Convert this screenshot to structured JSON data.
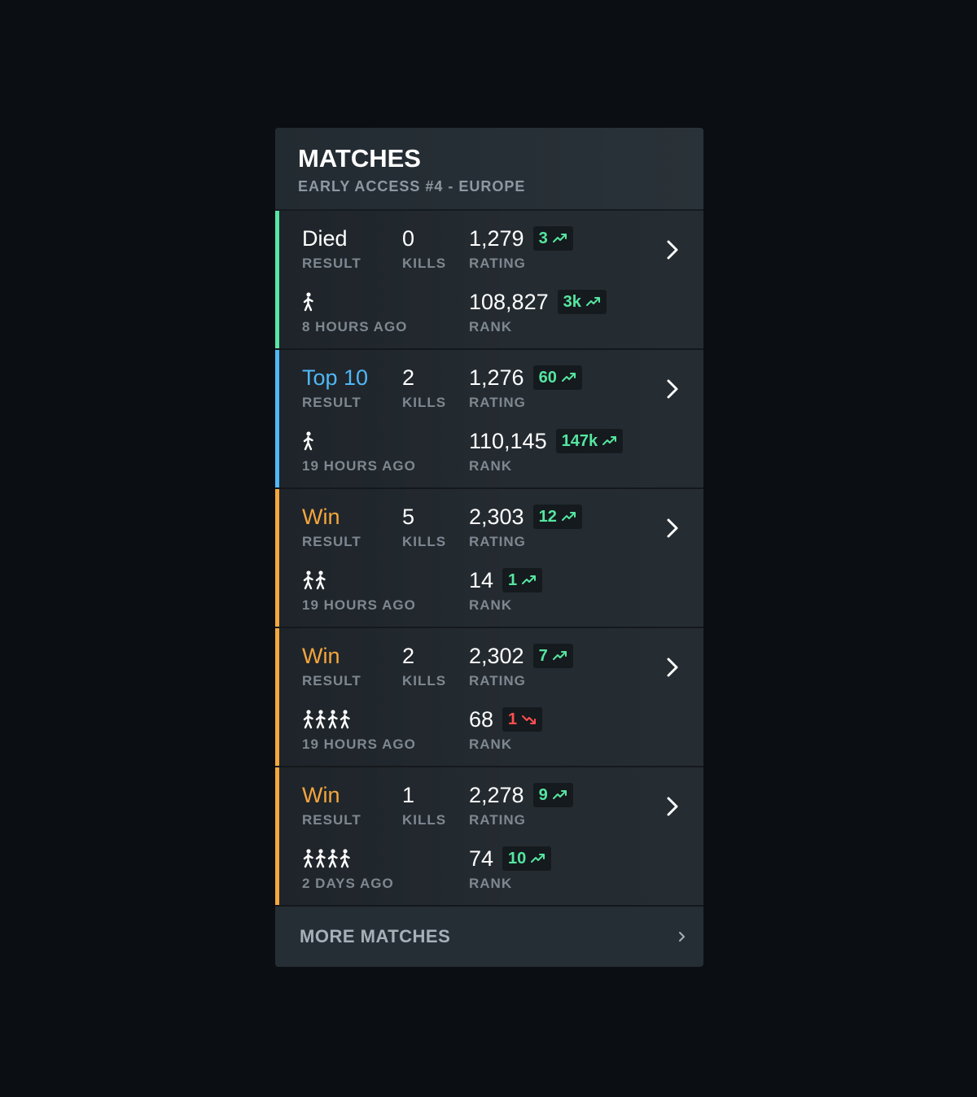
{
  "header": {
    "title": "MATCHES",
    "subtitle": "EARLY ACCESS #4 - EUROPE"
  },
  "labels": {
    "result": "RESULT",
    "kills": "KILLS",
    "rating": "RATING",
    "rank": "RANK"
  },
  "colors": {
    "died": "#57e6a4",
    "top10": "#4fb8f5",
    "win": "#f5a63d",
    "delta_up": "#55e6a0",
    "delta_down": "#ff4f4f"
  },
  "matches": [
    {
      "result": "Died",
      "result_type": "died",
      "kills": "0",
      "rating": "1,279",
      "rating_delta": "3",
      "rating_trend": "up",
      "mode_icon": "solo-person-icon",
      "team_size": 1,
      "time_ago": "8 HOURS AGO",
      "rank": "108,827",
      "rank_delta": "3k",
      "rank_trend": "up"
    },
    {
      "result": "Top 10",
      "result_type": "top10",
      "kills": "2",
      "rating": "1,276",
      "rating_delta": "60",
      "rating_trend": "up",
      "mode_icon": "solo-person-icon",
      "team_size": 1,
      "time_ago": "19 HOURS AGO",
      "rank": "110,145",
      "rank_delta": "147k",
      "rank_trend": "up"
    },
    {
      "result": "Win",
      "result_type": "win",
      "kills": "5",
      "rating": "2,303",
      "rating_delta": "12",
      "rating_trend": "up",
      "mode_icon": "duo-people-icon",
      "team_size": 2,
      "time_ago": "19 HOURS AGO",
      "rank": "14",
      "rank_delta": "1",
      "rank_trend": "up"
    },
    {
      "result": "Win",
      "result_type": "win",
      "kills": "2",
      "rating": "2,302",
      "rating_delta": "7",
      "rating_trend": "up",
      "mode_icon": "squad-people-icon",
      "team_size": 4,
      "time_ago": "19 HOURS AGO",
      "rank": "68",
      "rank_delta": "1",
      "rank_trend": "down"
    },
    {
      "result": "Win",
      "result_type": "win",
      "kills": "1",
      "rating": "2,278",
      "rating_delta": "9",
      "rating_trend": "up",
      "mode_icon": "squad-people-icon",
      "team_size": 4,
      "time_ago": "2 DAYS AGO",
      "rank": "74",
      "rank_delta": "10",
      "rank_trend": "up"
    }
  ],
  "footer": {
    "more_label": "MORE MATCHES"
  }
}
